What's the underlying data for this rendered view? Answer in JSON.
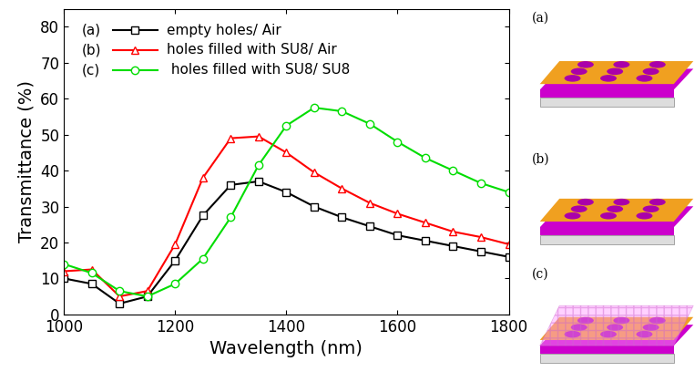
{
  "chart_data": {
    "type": "line",
    "x_label": "Wavelength (nm)",
    "y_label": "Transmittance (%)",
    "x": [
      1000,
      1050,
      1100,
      1150,
      1200,
      1250,
      1300,
      1350,
      1400,
      1450,
      1500,
      1550,
      1600,
      1650,
      1700,
      1750,
      1800
    ],
    "series": [
      {
        "tag": "(a)",
        "name": "empty holes/ Air",
        "color": "#000000",
        "marker": "square",
        "values": [
          10,
          8.5,
          3,
          5,
          15,
          27.5,
          36,
          37,
          34,
          30,
          27,
          24.5,
          22,
          20.5,
          19,
          17.5,
          16
        ]
      },
      {
        "tag": "(b)",
        "name": "holes filled with SU8/ Air",
        "color": "#ff0000",
        "marker": "triangle",
        "values": [
          12,
          12.5,
          5,
          6.5,
          19.5,
          38,
          49,
          49.5,
          45,
          39.5,
          35,
          31,
          28,
          25.5,
          23,
          21.5,
          19.5
        ]
      },
      {
        "tag": "(c)",
        "name": " holes filled with SU8/ SU8",
        "color": "#00dd00",
        "marker": "circle",
        "values": [
          14,
          11.5,
          6.5,
          5,
          8.5,
          15.5,
          27,
          41.5,
          52.5,
          57.5,
          56.5,
          53,
          48,
          43.5,
          40,
          36.5,
          34
        ]
      }
    ],
    "xlim": [
      1000,
      1800
    ],
    "xticks": [
      1000,
      1200,
      1400,
      1600,
      1800
    ],
    "ylim": [
      0,
      85
    ],
    "yticks": [
      0,
      10,
      20,
      30,
      40,
      50,
      60,
      70,
      80
    ],
    "legend": "upper left",
    "grid": false
  },
  "schematics": {
    "labels": [
      "(a)",
      "(b)",
      "(c)"
    ]
  }
}
